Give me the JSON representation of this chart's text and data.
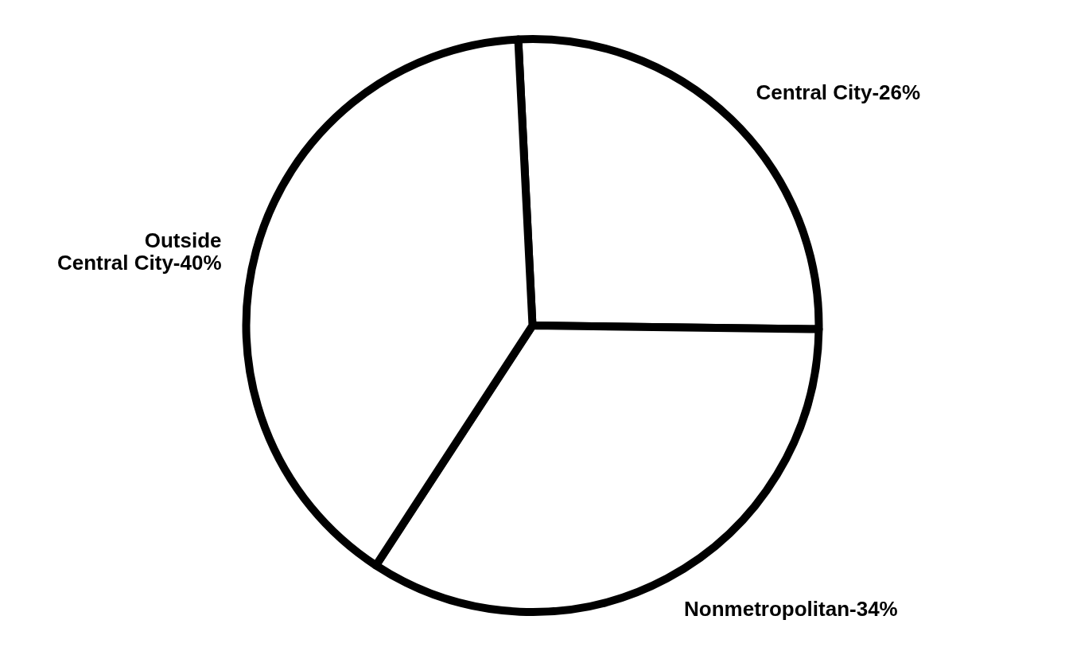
{
  "chart_data": {
    "type": "pie",
    "categories": [
      "Central City-26%",
      "Nonmetropolitan-34%",
      "Outside\nCentral City-40%"
    ],
    "values": [
      26,
      34,
      40
    ],
    "colors": [
      "#ffffff",
      "#ffffff",
      "#ffffff"
    ]
  }
}
